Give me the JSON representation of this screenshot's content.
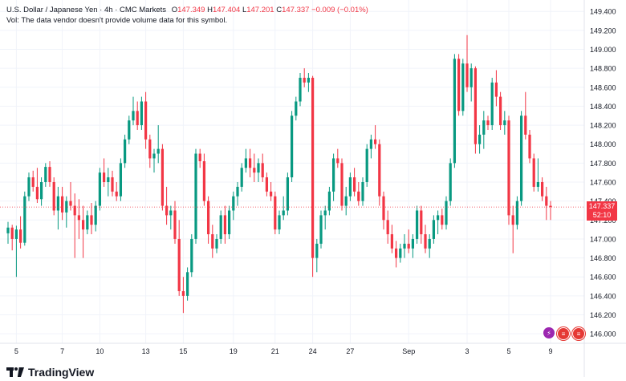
{
  "header": {
    "symbol": "U.S. Dollar / Japanese Yen · 4h · CMC Markets",
    "open_label": "O",
    "open": "147.349",
    "high_label": "H",
    "high": "147.404",
    "low_label": "L",
    "low": "147.201",
    "close_label": "C",
    "close": "147.337",
    "change": "−0.009 (−0.01%)",
    "volume_note": "Vol: The data vendor doesn't provide volume data for this symbol."
  },
  "price_tag": {
    "price": "147.337",
    "countdown": "52:10"
  },
  "logo": {
    "text": "TradingView"
  },
  "events": [
    "lightning-icon",
    "us-flag-icon",
    "us-flag-icon"
  ],
  "colors": {
    "up": "#089981",
    "down": "#f23645",
    "grid": "#f0f3fa",
    "text": "#131722",
    "axis_text": "#131722"
  },
  "chart_data": {
    "type": "candlestick",
    "title": "U.S. Dollar / Japanese Yen · 4h · CMC Markets",
    "ylim": [
      145.9,
      149.52
    ],
    "y_ticks": [
      "149.400",
      "149.200",
      "149.000",
      "148.800",
      "148.600",
      "148.400",
      "148.200",
      "148.000",
      "147.800",
      "147.600",
      "147.400",
      "147.200",
      "147.000",
      "146.800",
      "146.600",
      "146.400",
      "146.200",
      "146.000"
    ],
    "x_ticks": [
      "5",
      "7",
      "10",
      "13",
      "15",
      "19",
      "21",
      "24",
      "27",
      "Sep",
      "3",
      "5",
      "9"
    ],
    "last_price": 147.337,
    "candles": [
      {
        "o": 147.06,
        "h": 147.18,
        "l": 146.95,
        "c": 147.12
      },
      {
        "o": 147.12,
        "h": 147.15,
        "l": 146.88,
        "c": 147.0
      },
      {
        "o": 147.0,
        "h": 147.14,
        "l": 146.6,
        "c": 147.1
      },
      {
        "o": 147.1,
        "h": 147.24,
        "l": 146.9,
        "c": 146.96
      },
      {
        "o": 146.96,
        "h": 147.5,
        "l": 146.93,
        "c": 147.45
      },
      {
        "o": 147.45,
        "h": 147.7,
        "l": 147.4,
        "c": 147.65
      },
      {
        "o": 147.65,
        "h": 147.72,
        "l": 147.5,
        "c": 147.55
      },
      {
        "o": 147.55,
        "h": 147.75,
        "l": 147.38,
        "c": 147.42
      },
      {
        "o": 147.42,
        "h": 147.65,
        "l": 147.35,
        "c": 147.6
      },
      {
        "o": 147.6,
        "h": 147.8,
        "l": 147.55,
        "c": 147.76
      },
      {
        "o": 147.76,
        "h": 147.82,
        "l": 147.55,
        "c": 147.6
      },
      {
        "o": 147.6,
        "h": 147.65,
        "l": 147.25,
        "c": 147.3
      },
      {
        "o": 147.3,
        "h": 147.55,
        "l": 147.1,
        "c": 147.45
      },
      {
        "o": 147.45,
        "h": 147.55,
        "l": 147.2,
        "c": 147.28
      },
      {
        "o": 147.28,
        "h": 147.45,
        "l": 147.12,
        "c": 147.4
      },
      {
        "o": 147.4,
        "h": 147.6,
        "l": 147.3,
        "c": 147.35
      },
      {
        "o": 147.35,
        "h": 147.48,
        "l": 146.8,
        "c": 147.25
      },
      {
        "o": 147.25,
        "h": 147.42,
        "l": 147.0,
        "c": 147.2
      },
      {
        "o": 147.2,
        "h": 147.35,
        "l": 146.8,
        "c": 147.1
      },
      {
        "o": 147.1,
        "h": 147.3,
        "l": 147.05,
        "c": 147.25
      },
      {
        "o": 147.25,
        "h": 147.38,
        "l": 147.05,
        "c": 147.15
      },
      {
        "o": 147.15,
        "h": 147.4,
        "l": 147.08,
        "c": 147.35
      },
      {
        "o": 147.35,
        "h": 147.75,
        "l": 147.3,
        "c": 147.7
      },
      {
        "o": 147.7,
        "h": 147.85,
        "l": 147.55,
        "c": 147.6
      },
      {
        "o": 147.6,
        "h": 147.75,
        "l": 147.45,
        "c": 147.65
      },
      {
        "o": 147.65,
        "h": 147.72,
        "l": 147.45,
        "c": 147.5
      },
      {
        "o": 147.5,
        "h": 147.6,
        "l": 147.4,
        "c": 147.45
      },
      {
        "o": 147.45,
        "h": 147.85,
        "l": 147.4,
        "c": 147.8
      },
      {
        "o": 147.8,
        "h": 148.1,
        "l": 147.75,
        "c": 148.05
      },
      {
        "o": 148.05,
        "h": 148.3,
        "l": 148.0,
        "c": 148.25
      },
      {
        "o": 148.25,
        "h": 148.5,
        "l": 148.2,
        "c": 148.35
      },
      {
        "o": 148.35,
        "h": 148.45,
        "l": 148.15,
        "c": 148.2
      },
      {
        "o": 148.2,
        "h": 148.5,
        "l": 148.15,
        "c": 148.45
      },
      {
        "o": 148.45,
        "h": 148.55,
        "l": 147.95,
        "c": 148.05
      },
      {
        "o": 148.05,
        "h": 148.1,
        "l": 147.75,
        "c": 147.85
      },
      {
        "o": 147.85,
        "h": 147.95,
        "l": 147.7,
        "c": 147.9
      },
      {
        "o": 147.9,
        "h": 148.2,
        "l": 147.8,
        "c": 147.95
      },
      {
        "o": 147.95,
        "h": 148.0,
        "l": 147.3,
        "c": 147.35
      },
      {
        "o": 147.35,
        "h": 147.55,
        "l": 147.15,
        "c": 147.25
      },
      {
        "o": 147.25,
        "h": 147.35,
        "l": 147.1,
        "c": 147.3
      },
      {
        "o": 147.3,
        "h": 147.4,
        "l": 146.95,
        "c": 147.0
      },
      {
        "o": 147.0,
        "h": 147.2,
        "l": 146.4,
        "c": 146.45
      },
      {
        "o": 146.45,
        "h": 146.6,
        "l": 146.22,
        "c": 146.4
      },
      {
        "o": 146.4,
        "h": 146.7,
        "l": 146.35,
        "c": 146.65
      },
      {
        "o": 146.65,
        "h": 147.05,
        "l": 146.6,
        "c": 147.0
      },
      {
        "o": 147.0,
        "h": 147.95,
        "l": 146.95,
        "c": 147.9
      },
      {
        "o": 147.9,
        "h": 147.95,
        "l": 147.75,
        "c": 147.82
      },
      {
        "o": 147.82,
        "h": 147.9,
        "l": 147.35,
        "c": 147.4
      },
      {
        "o": 147.4,
        "h": 147.45,
        "l": 146.95,
        "c": 147.05
      },
      {
        "o": 147.05,
        "h": 147.15,
        "l": 146.8,
        "c": 146.9
      },
      {
        "o": 146.9,
        "h": 147.05,
        "l": 146.85,
        "c": 147.0
      },
      {
        "o": 147.0,
        "h": 147.3,
        "l": 146.95,
        "c": 147.25
      },
      {
        "o": 147.25,
        "h": 147.35,
        "l": 146.95,
        "c": 147.05
      },
      {
        "o": 147.05,
        "h": 147.35,
        "l": 147.0,
        "c": 147.3
      },
      {
        "o": 147.3,
        "h": 147.5,
        "l": 147.2,
        "c": 147.45
      },
      {
        "o": 147.45,
        "h": 147.6,
        "l": 147.35,
        "c": 147.55
      },
      {
        "o": 147.55,
        "h": 147.8,
        "l": 147.5,
        "c": 147.75
      },
      {
        "o": 147.75,
        "h": 147.95,
        "l": 147.7,
        "c": 147.85
      },
      {
        "o": 147.85,
        "h": 147.95,
        "l": 147.65,
        "c": 147.75
      },
      {
        "o": 147.75,
        "h": 147.9,
        "l": 147.6,
        "c": 147.7
      },
      {
        "o": 147.7,
        "h": 147.85,
        "l": 147.6,
        "c": 147.8
      },
      {
        "o": 147.8,
        "h": 147.9,
        "l": 147.6,
        "c": 147.65
      },
      {
        "o": 147.65,
        "h": 147.7,
        "l": 147.45,
        "c": 147.5
      },
      {
        "o": 147.5,
        "h": 147.6,
        "l": 147.4,
        "c": 147.45
      },
      {
        "o": 147.45,
        "h": 147.5,
        "l": 147.05,
        "c": 147.1
      },
      {
        "o": 147.1,
        "h": 147.3,
        "l": 147.05,
        "c": 147.25
      },
      {
        "o": 147.25,
        "h": 147.45,
        "l": 147.2,
        "c": 147.3
      },
      {
        "o": 147.3,
        "h": 147.7,
        "l": 147.25,
        "c": 147.65
      },
      {
        "o": 147.65,
        "h": 148.35,
        "l": 147.6,
        "c": 148.3
      },
      {
        "o": 148.3,
        "h": 148.5,
        "l": 148.25,
        "c": 148.45
      },
      {
        "o": 148.45,
        "h": 148.75,
        "l": 148.4,
        "c": 148.7
      },
      {
        "o": 148.7,
        "h": 148.8,
        "l": 148.6,
        "c": 148.65
      },
      {
        "o": 148.65,
        "h": 148.75,
        "l": 148.55,
        "c": 148.7
      },
      {
        "o": 148.7,
        "h": 148.72,
        "l": 146.6,
        "c": 146.8
      },
      {
        "o": 146.8,
        "h": 147.0,
        "l": 146.65,
        "c": 146.95
      },
      {
        "o": 146.95,
        "h": 147.3,
        "l": 146.9,
        "c": 147.25
      },
      {
        "o": 147.25,
        "h": 147.35,
        "l": 147.1,
        "c": 147.3
      },
      {
        "o": 147.3,
        "h": 147.55,
        "l": 147.25,
        "c": 147.5
      },
      {
        "o": 147.5,
        "h": 147.9,
        "l": 147.4,
        "c": 147.85
      },
      {
        "o": 147.85,
        "h": 147.95,
        "l": 147.75,
        "c": 147.8
      },
      {
        "o": 147.8,
        "h": 147.85,
        "l": 147.3,
        "c": 147.35
      },
      {
        "o": 147.35,
        "h": 147.55,
        "l": 147.25,
        "c": 147.45
      },
      {
        "o": 147.45,
        "h": 147.7,
        "l": 147.4,
        "c": 147.65
      },
      {
        "o": 147.65,
        "h": 147.75,
        "l": 147.45,
        "c": 147.5
      },
      {
        "o": 147.5,
        "h": 147.6,
        "l": 147.35,
        "c": 147.4
      },
      {
        "o": 147.4,
        "h": 147.65,
        "l": 147.35,
        "c": 147.6
      },
      {
        "o": 147.6,
        "h": 148.0,
        "l": 147.55,
        "c": 147.95
      },
      {
        "o": 147.95,
        "h": 148.1,
        "l": 147.85,
        "c": 148.05
      },
      {
        "o": 148.05,
        "h": 148.2,
        "l": 147.95,
        "c": 148.0
      },
      {
        "o": 148.0,
        "h": 148.05,
        "l": 147.35,
        "c": 147.45
      },
      {
        "o": 147.45,
        "h": 147.5,
        "l": 147.1,
        "c": 147.2
      },
      {
        "o": 147.2,
        "h": 147.3,
        "l": 146.95,
        "c": 147.05
      },
      {
        "o": 147.05,
        "h": 147.15,
        "l": 146.85,
        "c": 146.9
      },
      {
        "o": 146.9,
        "h": 146.98,
        "l": 146.7,
        "c": 146.8
      },
      {
        "o": 146.8,
        "h": 146.95,
        "l": 146.75,
        "c": 146.9
      },
      {
        "o": 146.9,
        "h": 147.05,
        "l": 146.8,
        "c": 146.95
      },
      {
        "o": 146.95,
        "h": 147.1,
        "l": 146.85,
        "c": 146.9
      },
      {
        "o": 146.9,
        "h": 147.05,
        "l": 146.8,
        "c": 147.0
      },
      {
        "o": 147.0,
        "h": 147.35,
        "l": 146.95,
        "c": 147.3
      },
      {
        "o": 147.3,
        "h": 147.35,
        "l": 146.95,
        "c": 147.05
      },
      {
        "o": 147.05,
        "h": 147.15,
        "l": 146.85,
        "c": 146.9
      },
      {
        "o": 146.9,
        "h": 147.05,
        "l": 146.8,
        "c": 147.0
      },
      {
        "o": 147.0,
        "h": 147.25,
        "l": 146.95,
        "c": 147.2
      },
      {
        "o": 147.2,
        "h": 147.3,
        "l": 147.05,
        "c": 147.25
      },
      {
        "o": 147.25,
        "h": 147.32,
        "l": 147.1,
        "c": 147.15
      },
      {
        "o": 147.15,
        "h": 147.45,
        "l": 147.1,
        "c": 147.4
      },
      {
        "o": 147.4,
        "h": 147.85,
        "l": 147.35,
        "c": 147.8
      },
      {
        "o": 147.8,
        "h": 148.95,
        "l": 147.75,
        "c": 148.9
      },
      {
        "o": 148.9,
        "h": 148.95,
        "l": 148.3,
        "c": 148.35
      },
      {
        "o": 148.35,
        "h": 148.9,
        "l": 148.3,
        "c": 148.85
      },
      {
        "o": 148.85,
        "h": 149.15,
        "l": 148.55,
        "c": 148.6
      },
      {
        "o": 148.6,
        "h": 148.85,
        "l": 148.45,
        "c": 148.8
      },
      {
        "o": 148.8,
        "h": 148.82,
        "l": 147.9,
        "c": 148.0
      },
      {
        "o": 148.0,
        "h": 148.2,
        "l": 147.9,
        "c": 148.1
      },
      {
        "o": 148.1,
        "h": 148.35,
        "l": 147.95,
        "c": 148.25
      },
      {
        "o": 148.25,
        "h": 148.3,
        "l": 148.15,
        "c": 148.2
      },
      {
        "o": 148.2,
        "h": 148.7,
        "l": 148.15,
        "c": 148.65
      },
      {
        "o": 148.65,
        "h": 148.78,
        "l": 148.4,
        "c": 148.5
      },
      {
        "o": 148.5,
        "h": 148.55,
        "l": 148.15,
        "c": 148.2
      },
      {
        "o": 148.2,
        "h": 148.35,
        "l": 148.1,
        "c": 148.25
      },
      {
        "o": 148.25,
        "h": 148.3,
        "l": 147.15,
        "c": 147.25
      },
      {
        "o": 147.25,
        "h": 147.35,
        "l": 146.85,
        "c": 147.15
      },
      {
        "o": 147.15,
        "h": 147.45,
        "l": 147.1,
        "c": 147.4
      },
      {
        "o": 147.4,
        "h": 148.35,
        "l": 147.35,
        "c": 148.3
      },
      {
        "o": 148.3,
        "h": 148.55,
        "l": 148.05,
        "c": 148.1
      },
      {
        "o": 148.1,
        "h": 148.15,
        "l": 147.8,
        "c": 147.85
      },
      {
        "o": 147.85,
        "h": 147.9,
        "l": 147.5,
        "c": 147.55
      },
      {
        "o": 147.55,
        "h": 147.85,
        "l": 147.5,
        "c": 147.6
      },
      {
        "o": 147.6,
        "h": 147.65,
        "l": 147.4,
        "c": 147.45
      },
      {
        "o": 147.45,
        "h": 147.55,
        "l": 147.2,
        "c": 147.35
      },
      {
        "o": 147.35,
        "h": 147.4,
        "l": 147.2,
        "c": 147.337
      }
    ]
  }
}
